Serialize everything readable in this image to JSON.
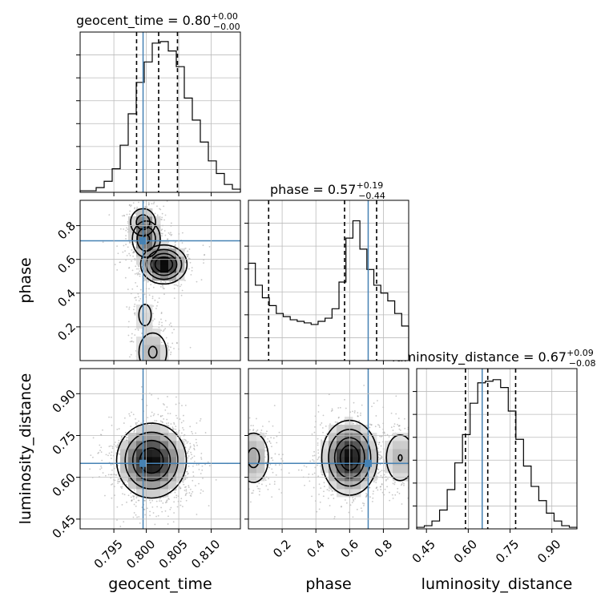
{
  "chart_data": {
    "type": "corner",
    "parameters": [
      "geocent_time",
      "phase",
      "luminosity_distance"
    ],
    "truths": {
      "geocent_time": 0.7995,
      "phase": 0.71,
      "luminosity_distance": 0.65
    },
    "accent_color": "#4682b4",
    "titles": {
      "geocent_time": {
        "main": "geocent_time = 0.80",
        "sup": "+0.00",
        "sub": "−0.00"
      },
      "phase": {
        "main": "phase = 0.57",
        "sup": "+0.19",
        "sub": "−0.44"
      },
      "luminosity_distance": {
        "main": "luminosity_distance = 0.67",
        "sup": "+0.09",
        "sub": "−0.08"
      }
    },
    "axes": {
      "geocent_time": {
        "label": "geocent_time",
        "range": [
          0.7898,
          0.8145
        ],
        "ticks": [
          0.795,
          0.8,
          0.805,
          0.81
        ],
        "tick_labels": [
          "0.795",
          "0.800",
          "0.805",
          "0.810"
        ]
      },
      "phase": {
        "label": "phase",
        "range": [
          0.0,
          0.95
        ],
        "ticks": [
          0.2,
          0.4,
          0.6,
          0.8
        ],
        "tick_labels": [
          "0.2",
          "0.4",
          "0.6",
          "0.8"
        ]
      },
      "luminosity_distance": {
        "label": "luminosity_distance",
        "range": [
          0.415,
          0.99
        ],
        "ticks": [
          0.45,
          0.6,
          0.75,
          0.9
        ],
        "tick_labels": [
          "0.45",
          "0.60",
          "0.75",
          "0.90"
        ]
      }
    },
    "quantiles": {
      "geocent_time": [
        0.7985,
        0.8019,
        0.8048
      ],
      "phase": [
        0.12,
        0.57,
        0.76
      ],
      "luminosity_distance": [
        0.59,
        0.67,
        0.77
      ]
    },
    "histograms": {
      "geocent_time": [
        0.01,
        0.01,
        0.03,
        0.07,
        0.15,
        0.3,
        0.5,
        0.7,
        0.83,
        0.95,
        0.96,
        0.9,
        0.8,
        0.6,
        0.46,
        0.32,
        0.2,
        0.12,
        0.05,
        0.02
      ],
      "phase": [
        0.62,
        0.48,
        0.4,
        0.35,
        0.3,
        0.28,
        0.26,
        0.25,
        0.24,
        0.23,
        0.25,
        0.27,
        0.33,
        0.5,
        0.78,
        0.89,
        0.71,
        0.58,
        0.48,
        0.43,
        0.38,
        0.3,
        0.22
      ],
      "luminosity_distance": [
        0.01,
        0.02,
        0.05,
        0.12,
        0.25,
        0.42,
        0.6,
        0.8,
        0.93,
        0.94,
        0.95,
        0.9,
        0.75,
        0.57,
        0.4,
        0.27,
        0.18,
        0.1,
        0.05,
        0.02,
        0.01
      ]
    },
    "blobs": {
      "phase_vs_geocent_time": [
        {
          "cx": 0.8027,
          "cy": 0.57,
          "sx": 0.0017,
          "sy": 0.055,
          "w": 1.0
        },
        {
          "cx": 0.8,
          "cy": 0.72,
          "sx": 0.0012,
          "sy": 0.06,
          "w": 0.55
        },
        {
          "cx": 0.7995,
          "cy": 0.82,
          "sx": 0.0012,
          "sy": 0.05,
          "w": 0.4
        },
        {
          "cx": 0.801,
          "cy": 0.05,
          "sx": 0.0015,
          "sy": 0.08,
          "w": 0.3
        },
        {
          "cx": 0.7998,
          "cy": 0.27,
          "sx": 0.0012,
          "sy": 0.08,
          "w": 0.15
        }
      ],
      "luminosity_distance_vs_geocent_time": [
        {
          "cx": 0.8008,
          "cy": 0.66,
          "sx": 0.0026,
          "sy": 0.065,
          "w": 1.0
        }
      ],
      "luminosity_distance_vs_phase": [
        {
          "cx": 0.6,
          "cy": 0.67,
          "sx": 0.08,
          "sy": 0.065,
          "w": 1.0
        },
        {
          "cx": 0.03,
          "cy": 0.67,
          "sx": 0.06,
          "sy": 0.06,
          "w": 0.35
        },
        {
          "cx": 0.9,
          "cy": 0.67,
          "sx": 0.06,
          "sy": 0.06,
          "w": 0.3
        }
      ]
    },
    "grid": true
  }
}
